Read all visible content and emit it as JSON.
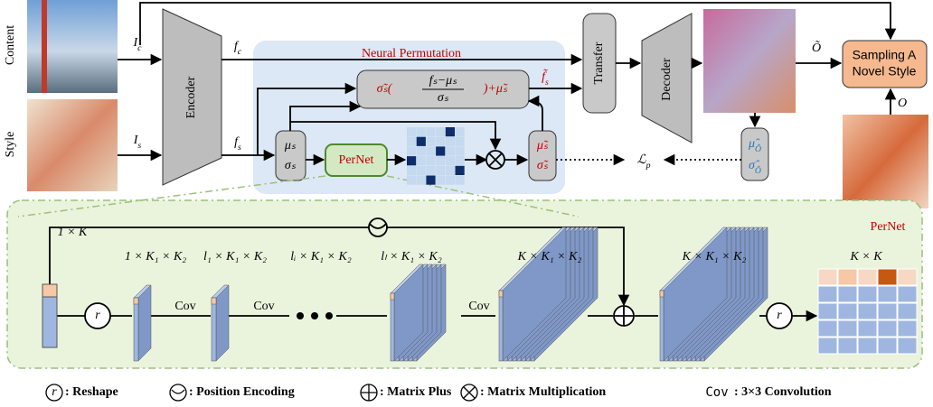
{
  "inputs": {
    "content": "Content",
    "style": "Style"
  },
  "symbols": {
    "ic": [
      "I",
      "c"
    ],
    "is": [
      "I",
      "s"
    ],
    "fc": [
      "f",
      "c"
    ],
    "fs": [
      "f",
      "s"
    ],
    "f_tilde": [
      "f̃",
      "s"
    ],
    "o_tilde": "Õ",
    "o": "O",
    "loss": [
      "ℒ",
      "p"
    ]
  },
  "encoder": "Encoder",
  "transfer": "Transfer",
  "decoder": "Decoder",
  "sampling": [
    "Sampling A",
    "Novel Style"
  ],
  "neural_permutation": {
    "title": "Neural Permutation",
    "formula": {
      "prefix": "σ̃ₛ(",
      "numerator": "fₛ−μₛ",
      "denominator": "σₛ",
      "suffix": ")+μ̃ₛ"
    },
    "stats": [
      "μₛ",
      "σₛ"
    ],
    "pernet": "PerNet",
    "tilde_stats": [
      "μ̃ₛ",
      "σ̃ₛ"
    ]
  },
  "output_stats": [
    [
      "μ̂",
      "Ô"
    ],
    [
      "σ̂",
      "Ô"
    ]
  ],
  "pernet": {
    "title": "PerNet",
    "shapes": [
      "1 × K",
      "1 × K₁ × K₂",
      "l₁ × K₁ × K₂",
      "lᵢ × K₁ × K₂",
      "lₗ × K₁ × K₂",
      "K × K₁ × K₂",
      "K × K₁ × K₂",
      "K × K"
    ],
    "cov": [
      "Cov",
      "Cov",
      "Cov"
    ],
    "reshape": [
      "r",
      "r"
    ]
  },
  "legend": {
    "reshape_symbol": "r",
    "reshape": ": Reshape",
    "position": ": Position Encoding",
    "plus": ": Matrix Plus",
    "mult": ": Matrix Multiplication",
    "cov_symbol": "Cov",
    "cov": ": 3×3 Convolution"
  }
}
